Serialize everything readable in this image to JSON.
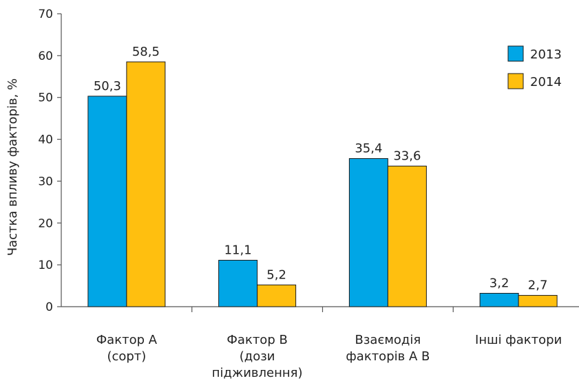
{
  "chart_data": {
    "type": "bar",
    "ylabel": "Частка впливу факторів, %",
    "ylim": [
      0,
      70
    ],
    "yticks": [
      0,
      10,
      20,
      30,
      40,
      50,
      60,
      70
    ],
    "categories": [
      [
        "Фактор А",
        "(сорт)"
      ],
      [
        "Фактор В",
        "(дози",
        "підживлення)"
      ],
      [
        "Взаємодія",
        "факторів А В"
      ],
      [
        "Інші фактори"
      ]
    ],
    "series": [
      {
        "name": "2013",
        "color": "#00a6e6",
        "values": [
          50.3,
          11.1,
          35.4,
          3.2
        ],
        "labels": [
          "50,3",
          "11,1",
          "35,4",
          "3,2"
        ]
      },
      {
        "name": "2014",
        "color": "#ffbf0f",
        "values": [
          58.5,
          5.2,
          33.6,
          2.7
        ],
        "labels": [
          "58,5",
          "5,2",
          "33,6",
          "2,7"
        ]
      }
    ],
    "legend": "top-right",
    "grid": false
  }
}
